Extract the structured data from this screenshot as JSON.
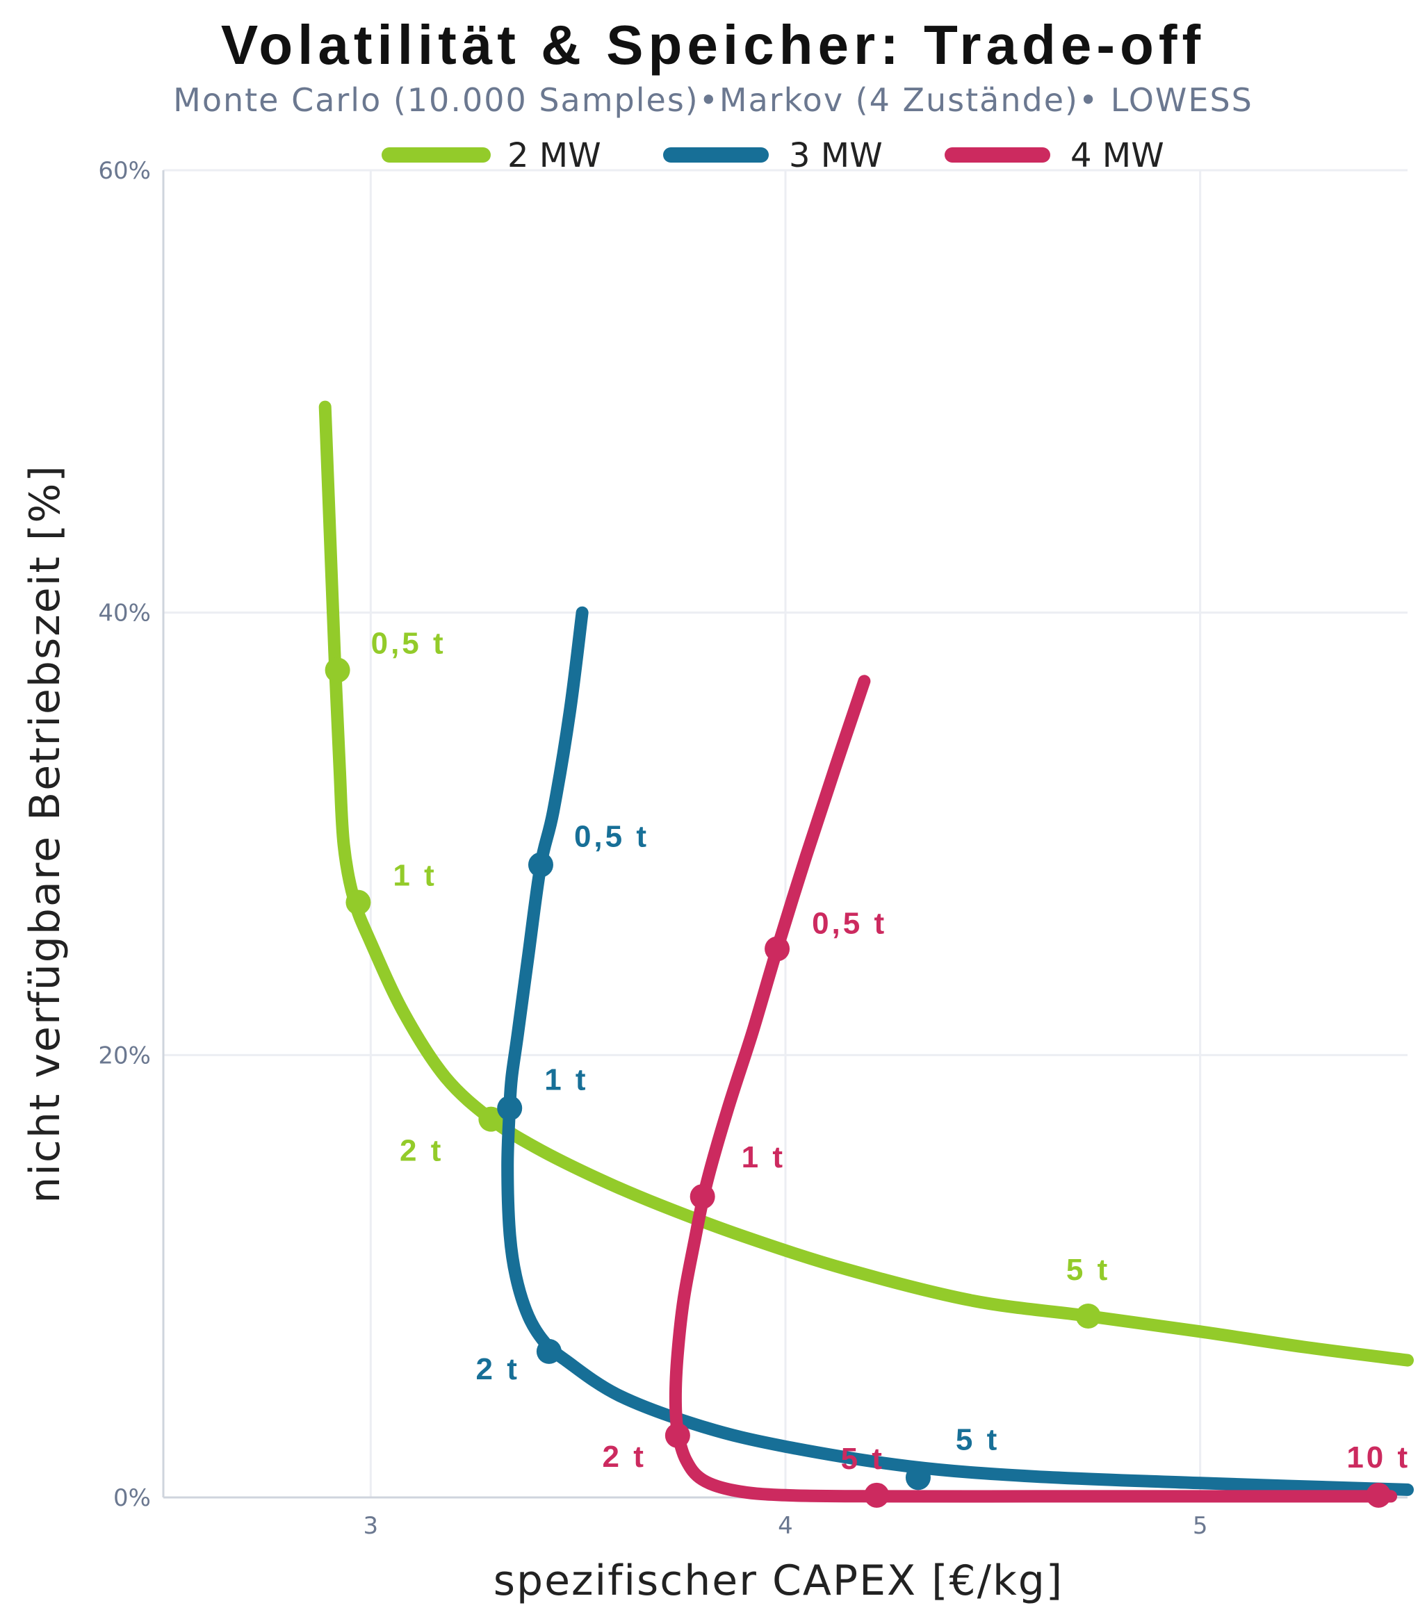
{
  "header": {
    "title": "Volatilität & Speicher: Trade-off",
    "subtitle": "Monte Carlo (10.000 Samples)•Markov (4 Zustände)• LOWESS"
  },
  "colors": {
    "mw2": "#93cb2a",
    "mw3": "#176f97",
    "mw4": "#cc2a5f",
    "grid": "#eceef3",
    "axis": "#cfd4dd"
  },
  "chart_data": {
    "type": "line",
    "title": "Volatilität & Speicher: Trade-off",
    "subtitle": "Monte Carlo (10.000 Samples)•Markov (4 Zustände)• LOWESS",
    "xlabel": "spezifischer CAPEX [€/kg]",
    "ylabel": "nicht verfügbare Betriebszeit [%]",
    "xlim": [
      2.5,
      5.5
    ],
    "ylim": [
      0,
      60
    ],
    "x_ticks": [
      {
        "value": 3,
        "label": "3"
      },
      {
        "value": 4,
        "label": "4"
      },
      {
        "value": 5,
        "label": "5"
      }
    ],
    "y_ticks": [
      {
        "value": 0,
        "label": "0%"
      },
      {
        "value": 20,
        "label": "20%"
      },
      {
        "value": 40,
        "label": "40%"
      },
      {
        "value": 60,
        "label": "60%"
      }
    ],
    "grid": true,
    "legend_position": "top-center",
    "series": [
      {
        "name": "2 MW",
        "color": "#93cb2a",
        "curve": [
          [
            2.89,
            49.3
          ],
          [
            2.905,
            42.0
          ],
          [
            2.915,
            37.2
          ],
          [
            2.925,
            33.0
          ],
          [
            2.935,
            29.5
          ],
          [
            2.96,
            27.0
          ],
          [
            3.0,
            25.1
          ],
          [
            3.08,
            21.9
          ],
          [
            3.18,
            19.0
          ],
          [
            3.29,
            17.1
          ],
          [
            3.4,
            15.8
          ],
          [
            3.55,
            14.4
          ],
          [
            3.7,
            13.2
          ],
          [
            3.9,
            11.8
          ],
          [
            4.15,
            10.3
          ],
          [
            4.45,
            8.9
          ],
          [
            4.73,
            8.2
          ],
          [
            5.0,
            7.5
          ],
          [
            5.25,
            6.8
          ],
          [
            5.5,
            6.2
          ]
        ],
        "points": [
          {
            "x": 2.92,
            "y": 37.4,
            "label": "0,5 t"
          },
          {
            "x": 2.97,
            "y": 26.9,
            "label": "1 t"
          },
          {
            "x": 3.29,
            "y": 17.1,
            "label": "2 t"
          },
          {
            "x": 4.73,
            "y": 8.2,
            "label": "5 t"
          }
        ]
      },
      {
        "name": "3 MW",
        "color": "#176f97",
        "curve": [
          [
            3.51,
            40.0
          ],
          [
            3.48,
            35.5
          ],
          [
            3.44,
            31.0
          ],
          [
            3.41,
            28.6
          ],
          [
            3.38,
            24.5
          ],
          [
            3.355,
            21.0
          ],
          [
            3.34,
            19.0
          ],
          [
            3.335,
            17.6
          ],
          [
            3.33,
            15.0
          ],
          [
            3.335,
            12.0
          ],
          [
            3.35,
            10.0
          ],
          [
            3.38,
            8.2
          ],
          [
            3.42,
            7.0
          ],
          [
            3.47,
            6.2
          ],
          [
            3.6,
            4.6
          ],
          [
            3.8,
            3.2
          ],
          [
            4.0,
            2.3
          ],
          [
            4.3,
            1.4
          ],
          [
            4.6,
            0.95
          ],
          [
            5.0,
            0.65
          ],
          [
            5.5,
            0.35
          ]
        ],
        "points": [
          {
            "x": 3.41,
            "y": 28.6,
            "label": "0,5 t"
          },
          {
            "x": 3.335,
            "y": 17.6,
            "label": "1 t"
          },
          {
            "x": 3.43,
            "y": 6.6,
            "label": "2 t"
          },
          {
            "x": 4.32,
            "y": 0.9,
            "label": "5 t"
          }
        ]
      },
      {
        "name": "4 MW",
        "color": "#cc2a5f",
        "curve": [
          [
            4.19,
            36.9
          ],
          [
            4.12,
            33.0
          ],
          [
            4.05,
            29.0
          ],
          [
            3.98,
            24.8
          ],
          [
            3.92,
            21.0
          ],
          [
            3.86,
            17.5
          ],
          [
            3.81,
            14.2
          ],
          [
            3.78,
            11.5
          ],
          [
            3.755,
            9.0
          ],
          [
            3.74,
            6.5
          ],
          [
            3.735,
            4.5
          ],
          [
            3.74,
            3.0
          ],
          [
            3.76,
            1.7
          ],
          [
            3.8,
            0.8
          ],
          [
            3.88,
            0.3
          ],
          [
            4.0,
            0.1
          ],
          [
            4.22,
            0.05
          ],
          [
            4.6,
            0.05
          ],
          [
            5.0,
            0.05
          ],
          [
            5.46,
            0.05
          ]
        ],
        "points": [
          {
            "x": 3.98,
            "y": 24.8,
            "label": "0,5 t"
          },
          {
            "x": 3.8,
            "y": 13.6,
            "label": "1 t"
          },
          {
            "x": 3.74,
            "y": 2.8,
            "label": "2 t"
          },
          {
            "x": 4.22,
            "y": 0.1,
            "label": "5 t"
          },
          {
            "x": 5.43,
            "y": 0.1,
            "label": "10 t"
          }
        ]
      }
    ]
  }
}
